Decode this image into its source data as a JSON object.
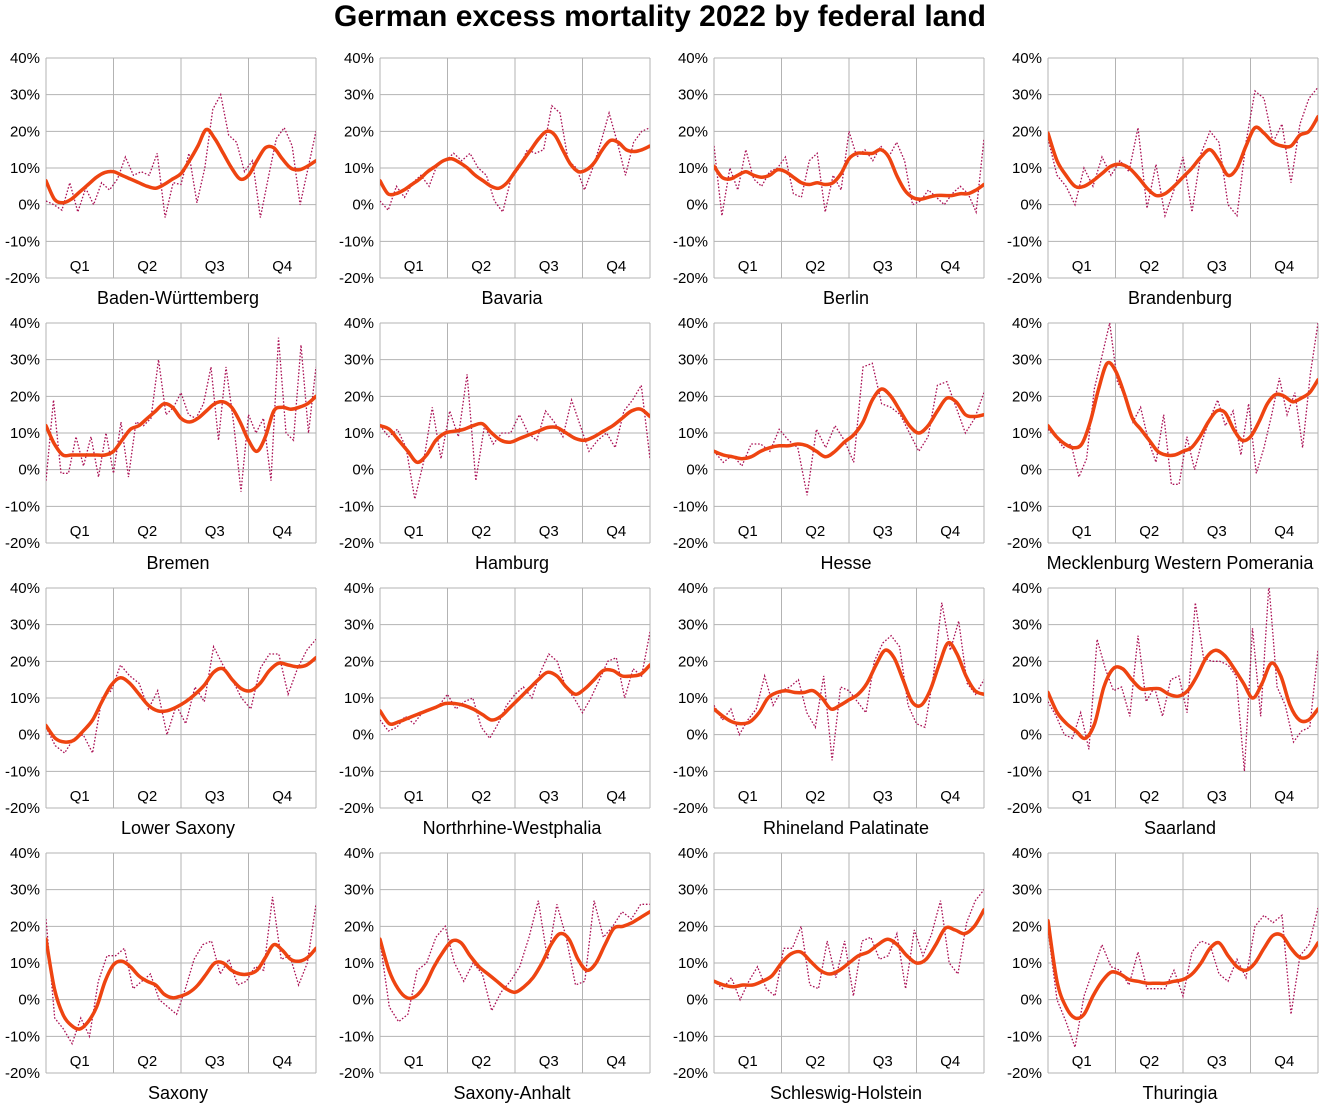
{
  "title": "German excess mortality 2022 by federal land",
  "colors": {
    "trend": "#ee4411",
    "weekly": "#aa1155",
    "grid": "#b3b3b3"
  },
  "chart_data": {
    "type": "line",
    "ylim": [
      -20,
      40
    ],
    "yticks": [
      "40%",
      "30%",
      "20%",
      "10%",
      "0%",
      "-10%",
      "-20%"
    ],
    "quarters": [
      "Q1",
      "Q2",
      "Q3",
      "Q4"
    ],
    "grid": true,
    "panels": [
      {
        "name": "Baden-Württemberg",
        "trend": [
          6.5,
          1.5,
          0.5,
          1.5,
          3.5,
          5.5,
          7.5,
          8.8,
          9,
          8,
          7,
          6,
          5,
          4.5,
          5.5,
          7,
          8.5,
          12,
          16,
          20.5,
          18,
          14,
          10,
          7,
          8,
          12,
          15.5,
          15.5,
          12.5,
          10,
          9.5,
          10.5,
          12
        ],
        "weekly": [
          1,
          0,
          -1.5,
          6,
          -2,
          4.5,
          0,
          6,
          4,
          7,
          13,
          8,
          9,
          8,
          14,
          -3.5,
          6,
          5.5,
          14,
          0.5,
          10,
          26,
          30,
          19,
          17,
          9,
          12,
          -3.5,
          7.5,
          18,
          21,
          16,
          0,
          10,
          20
        ]
      },
      {
        "name": "Bavaria",
        "trend": [
          6.5,
          3,
          3,
          4,
          5.5,
          7,
          9,
          10.5,
          12,
          12.5,
          11.5,
          10,
          8,
          6.5,
          5,
          4.5,
          6,
          9,
          12,
          15,
          18,
          20,
          19,
          15,
          11,
          9,
          9.5,
          11.5,
          15,
          17.5,
          17,
          15,
          14.5,
          15,
          16
        ],
        "weekly": [
          1,
          -1.5,
          5,
          2,
          6,
          8,
          5,
          11,
          12,
          14,
          12,
          14,
          10,
          8,
          1,
          -2,
          7,
          10,
          15,
          14,
          15,
          27,
          25,
          12,
          10,
          4,
          10,
          17,
          25,
          17,
          8,
          17,
          20,
          21
        ]
      },
      {
        "name": "Berlin",
        "trend": [
          10.5,
          7.5,
          7,
          8,
          9,
          8,
          7.5,
          8,
          9.5,
          9,
          7.5,
          6,
          5.5,
          6,
          5.5,
          6,
          8.5,
          12.5,
          14,
          14,
          14,
          15,
          13,
          8,
          4,
          2,
          1.5,
          2,
          2.5,
          2.5,
          2.5,
          3,
          3,
          4,
          5.5
        ],
        "weekly": [
          16,
          -3,
          10,
          4,
          15,
          7,
          5,
          9,
          10,
          13,
          3,
          2,
          12,
          14,
          -2,
          8,
          4,
          20,
          13,
          15,
          12,
          16,
          13,
          17,
          12,
          0,
          1,
          4,
          2,
          0,
          3,
          5,
          3,
          -2,
          18
        ]
      },
      {
        "name": "Brandenburg",
        "trend": [
          19.5,
          12,
          8,
          5,
          5,
          6.5,
          8.5,
          10.5,
          11,
          10,
          7.5,
          4.5,
          2.5,
          3,
          5,
          7.5,
          10,
          13,
          15,
          12,
          8,
          10,
          16,
          21,
          19.5,
          17,
          16,
          16,
          19,
          20,
          24
        ],
        "weekly": [
          18,
          8,
          5,
          0,
          10,
          5,
          13,
          8,
          12,
          9,
          21,
          -1,
          11,
          -3,
          4,
          13,
          -2,
          14,
          20,
          17,
          0,
          -3,
          17,
          31,
          29,
          17,
          22,
          6,
          22,
          29,
          32
        ]
      },
      {
        "name": "Bremen",
        "trend": [
          12,
          7,
          4,
          4,
          4,
          4,
          4,
          4,
          5,
          8,
          11,
          12,
          14,
          16,
          18,
          17,
          14,
          13,
          14,
          16,
          18,
          18.5,
          17,
          13,
          8,
          5,
          9,
          16,
          17,
          16.5,
          17,
          18,
          20
        ],
        "weekly": [
          -3,
          19,
          -1,
          -1,
          9,
          1,
          9,
          -2,
          10,
          -1,
          13,
          -2,
          13,
          12,
          14,
          30,
          15,
          17,
          21,
          15,
          14,
          18,
          28,
          8,
          28,
          13,
          -6,
          15,
          10,
          14,
          -3,
          36,
          10,
          8,
          34,
          10,
          28
        ]
      },
      {
        "name": "Hamburg",
        "trend": [
          12,
          11,
          8,
          5,
          2,
          4,
          8,
          10,
          10.5,
          11,
          12,
          12.5,
          10,
          8,
          7.5,
          8.5,
          9.5,
          10.5,
          11.5,
          11.5,
          10,
          8.5,
          8,
          9,
          10.5,
          12,
          14,
          16,
          16.5,
          14.5
        ],
        "weekly": [
          12,
          9,
          11,
          6,
          -8,
          2,
          17,
          3,
          16,
          9,
          26,
          -3,
          12,
          7,
          10,
          10,
          15,
          10,
          8,
          16,
          13,
          9,
          19,
          12,
          5,
          8,
          10,
          6,
          16,
          19,
          23,
          3
        ]
      },
      {
        "name": "Hesse",
        "trend": [
          5,
          4,
          3.5,
          3,
          3.5,
          5,
          6,
          6.5,
          6.5,
          7,
          6.5,
          5,
          3.5,
          5,
          7.5,
          9.5,
          13,
          19,
          22,
          20,
          16,
          12,
          10,
          12,
          16,
          19.5,
          18.5,
          15,
          14.5,
          15
        ],
        "weekly": [
          5,
          2,
          4,
          1,
          7,
          7,
          5,
          11,
          8,
          6,
          -7,
          11,
          6,
          12,
          8,
          2,
          28,
          29,
          18,
          17,
          15,
          10,
          5,
          9,
          23,
          24,
          17,
          10,
          14,
          21
        ]
      },
      {
        "name": "Mecklenburg Western Pomerania",
        "trend": [
          12,
          9,
          7,
          6,
          7,
          13,
          22,
          29,
          27,
          21,
          14,
          11,
          8,
          5,
          4,
          4,
          5,
          6,
          9,
          13,
          16,
          15.5,
          11,
          8,
          9,
          13,
          18,
          20.5,
          20,
          18.5,
          19.5,
          21,
          24.5
        ],
        "weekly": [
          11,
          9,
          6,
          7,
          -2,
          3,
          22,
          31,
          40,
          24,
          20,
          13,
          17,
          8,
          2,
          15,
          -4,
          -4,
          9,
          0,
          8,
          14,
          19,
          12,
          16,
          4,
          18,
          -1,
          6,
          15,
          25,
          15,
          21,
          6,
          26,
          40
        ]
      },
      {
        "name": "Lower Saxony",
        "trend": [
          2.5,
          -1,
          -2,
          -1.5,
          1,
          4,
          9,
          13.5,
          15.5,
          14,
          11,
          8,
          6.5,
          6.5,
          7.5,
          9,
          11,
          13.5,
          17,
          18,
          15,
          12.5,
          12,
          14,
          17.5,
          19.5,
          19,
          18.5,
          19,
          21
        ],
        "weekly": [
          2,
          -3,
          -5,
          -1,
          0,
          -5,
          10,
          12,
          19,
          16,
          14,
          7,
          12,
          0,
          8,
          3,
          13,
          9,
          24,
          19,
          15,
          10,
          7,
          18,
          22,
          22,
          11,
          18,
          23,
          26
        ]
      },
      {
        "name": "Northrhine-Westphalia",
        "trend": [
          6.5,
          3,
          3.5,
          4.5,
          5.5,
          6.5,
          7.5,
          8.5,
          8.5,
          8,
          7,
          5.5,
          4,
          5,
          7.5,
          10,
          12.5,
          15,
          17,
          16,
          13,
          11,
          12.5,
          15,
          17.5,
          17.5,
          16,
          16,
          16.5,
          19
        ],
        "weekly": [
          4,
          1,
          2,
          5,
          3,
          6,
          7,
          8,
          11,
          7,
          9,
          10,
          2,
          -1,
          3,
          8,
          11,
          13,
          10,
          17,
          22,
          20,
          13,
          10,
          6,
          10,
          15,
          20,
          21,
          10,
          18,
          16,
          28
        ]
      },
      {
        "name": "Rhineland Palatinate",
        "trend": [
          7,
          5,
          3.5,
          3,
          3.5,
          6,
          10,
          11.5,
          12,
          11.5,
          11.5,
          12,
          10,
          7,
          8,
          9.5,
          11,
          14,
          19,
          23,
          21,
          15,
          9,
          8,
          12,
          19,
          25,
          22,
          16,
          12,
          11
        ],
        "weekly": [
          8,
          4,
          7,
          0,
          4,
          7,
          16,
          8,
          12,
          13,
          15,
          6,
          2,
          16,
          -7,
          13,
          12,
          9,
          6,
          20,
          25,
          27,
          24,
          8,
          3,
          2,
          16,
          36,
          23,
          31,
          14,
          11,
          15
        ]
      },
      {
        "name": "Saarland",
        "trend": [
          11.5,
          6,
          3,
          1,
          -1,
          3,
          13,
          18,
          18,
          15,
          12.5,
          12.5,
          12.5,
          11,
          10.5,
          12,
          16,
          21,
          23,
          21.5,
          18,
          14,
          10,
          14,
          19.5,
          16,
          8,
          4,
          4,
          7
        ],
        "weekly": [
          9,
          5,
          0,
          -1,
          6,
          -4,
          26,
          18,
          12,
          13,
          5,
          27,
          9,
          13,
          5,
          15,
          16,
          6,
          36,
          21,
          20,
          20,
          19,
          16,
          -10,
          29,
          5,
          41,
          13,
          8,
          -2,
          1,
          2,
          23
        ]
      },
      {
        "name": "Saxony",
        "trend": [
          16.5,
          3,
          -4,
          -7,
          -8,
          -6,
          -2,
          5,
          9.5,
          10.5,
          9,
          6.5,
          5,
          4,
          1.5,
          0.5,
          1,
          2,
          4,
          7,
          10,
          10,
          8,
          7,
          7,
          8,
          11.5,
          15,
          13.5,
          11,
          10.5,
          11.5,
          14
        ],
        "weekly": [
          22,
          -5,
          -8,
          -12,
          -5,
          -10,
          5,
          12,
          12,
          14,
          3,
          5,
          7,
          0,
          -2,
          -4,
          3,
          11,
          15,
          16,
          7,
          11,
          4,
          5,
          9,
          8,
          28,
          11,
          12,
          4,
          10,
          26
        ]
      },
      {
        "name": "Saxony-Anhalt",
        "trend": [
          16.5,
          8,
          3,
          0.5,
          1,
          4,
          9,
          13,
          16,
          15.5,
          12,
          9,
          7,
          5,
          3,
          2,
          3.5,
          6,
          10,
          15,
          18,
          16.5,
          11,
          8,
          10,
          15,
          19.5,
          20,
          21,
          22.5,
          24
        ],
        "weekly": [
          16,
          -2,
          -6,
          -4,
          8,
          10,
          17,
          20,
          10,
          5,
          10,
          7,
          -3,
          2,
          5,
          9,
          17,
          27,
          11,
          26,
          17,
          4,
          5,
          27,
          17,
          20,
          24,
          22,
          26,
          26
        ]
      },
      {
        "name": "Schleswig-Holstein",
        "trend": [
          5,
          4,
          3.5,
          4,
          4,
          5,
          6.5,
          10,
          12.5,
          13,
          10.5,
          8,
          7,
          8,
          10,
          12,
          13,
          15,
          16.5,
          15,
          12,
          10,
          11,
          15,
          19.5,
          19,
          18,
          20,
          24.5
        ],
        "weekly": [
          5,
          3,
          6,
          0,
          5,
          9,
          3,
          1,
          14,
          14,
          20,
          4,
          3,
          16,
          6,
          16,
          1,
          16,
          17,
          11,
          12,
          18,
          3,
          19,
          12,
          18,
          27,
          10,
          7,
          21,
          27,
          30
        ]
      },
      {
        "name": "Thuringia",
        "trend": [
          21.5,
          5,
          -2,
          -5,
          -4,
          1,
          5,
          7.5,
          7,
          5.5,
          5,
          4.5,
          4.5,
          4.5,
          5,
          5.5,
          7,
          10,
          14,
          15.5,
          12,
          9,
          8,
          10,
          14,
          17.5,
          17.5,
          14,
          11.5,
          12,
          15.5
        ],
        "weekly": [
          19,
          0,
          -6,
          -13,
          1,
          8,
          15,
          9,
          8,
          4,
          13,
          3,
          3,
          3,
          8,
          1,
          13,
          16,
          15,
          7,
          5,
          11,
          6,
          20,
          23,
          21,
          23,
          -4,
          12,
          15,
          25
        ]
      }
    ]
  }
}
